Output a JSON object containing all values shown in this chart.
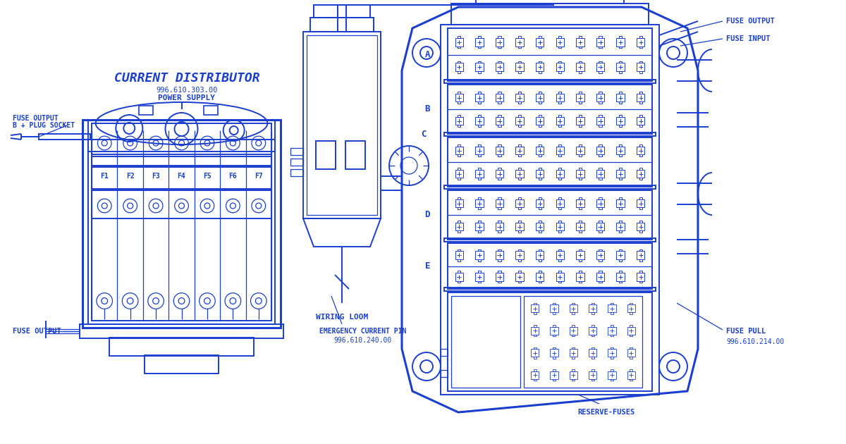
{
  "bg_color": "#ffffff",
  "blue": "#1a3fd0",
  "title": "CURRENT DISTRIBUTOR",
  "subtitle1": "996.610.303.00",
  "subtitle2": "POWER SUPPLY",
  "fuse_labels": [
    "F1",
    "F2",
    "F3",
    "F4",
    "F5",
    "F6",
    "F7"
  ],
  "label_fuse_output_b": "FUSE OUTPUT\nB + PLUG SOCKET",
  "label_fuse_output_bottom": "FUSE OUTPUT",
  "label_wiring_loom": "WIRING LOOM",
  "label_emergency": "EMERGENCY CURRENT PIN",
  "label_emergency_num": "996.610.240.00",
  "label_fuse_output_right": "FUSE OUTPUT",
  "label_fuse_input_right": "FUSE INPUT",
  "label_fuse_pull": "FUSE PULL",
  "label_fuse_pull_num": "996.610.214.00",
  "label_reserve": "RESERVE-FUSES",
  "section_labels": [
    "A",
    "B",
    "C",
    "D",
    "E"
  ]
}
